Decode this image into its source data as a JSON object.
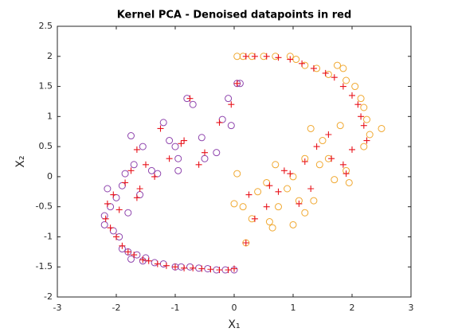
{
  "chart_data": {
    "type": "scatter",
    "title": "Kernel PCA - Denoised datapoints in red",
    "xlabel": "X₁",
    "ylabel": "X₂",
    "xlim": [
      -3,
      3
    ],
    "xticks": [
      -3,
      -2,
      -1,
      0,
      1,
      2,
      3
    ],
    "ylim": [
      -2,
      2.5
    ],
    "yticks": [
      -2,
      -1.5,
      -1,
      -0.5,
      0,
      0.5,
      1,
      1.5,
      2,
      2.5
    ],
    "grid": false,
    "series": [
      {
        "color": "#8e44ad",
        "marker": "o",
        "x": [
          -2.2,
          -2.2,
          -2.15,
          -2.1,
          -2.05,
          -2.0,
          -1.95,
          -1.9,
          -1.9,
          -1.85,
          -1.8,
          -1.8,
          -1.75,
          -1.7,
          -1.65,
          -1.6,
          -1.55,
          -1.5,
          -1.4,
          -1.35,
          -1.2,
          -1.2,
          -1.1,
          -1.0,
          -0.95,
          -0.9,
          -0.8,
          -0.75,
          -0.7,
          -0.6,
          -0.55,
          -0.5,
          -0.45,
          -0.3,
          -0.2,
          -0.15,
          -0.1,
          -0.05,
          0.0,
          0.05,
          0.1,
          -1.75,
          -1.55,
          -1.0,
          -0.3,
          -1.3,
          -0.95
        ],
        "y": [
          -0.65,
          -0.8,
          -0.2,
          -0.5,
          -0.9,
          -0.35,
          -1.0,
          -0.15,
          -1.2,
          0.05,
          -0.6,
          -1.25,
          -1.37,
          0.2,
          -1.3,
          -0.3,
          -1.4,
          -1.35,
          0.1,
          -1.43,
          0.9,
          -1.45,
          0.6,
          -1.5,
          0.3,
          -1.5,
          1.3,
          -1.5,
          1.2,
          -1.52,
          0.65,
          0.3,
          -1.53,
          -1.55,
          0.95,
          -1.55,
          1.3,
          0.85,
          -1.55,
          1.55,
          1.55,
          0.68,
          0.5,
          0.5,
          0.4,
          0.05,
          0.1
        ]
      },
      {
        "color": "#f0a830",
        "marker": "o",
        "x": [
          0.05,
          0.15,
          0.3,
          0.5,
          0.7,
          0.95,
          1.05,
          1.2,
          1.4,
          1.6,
          1.75,
          1.85,
          1.9,
          2.05,
          2.15,
          2.2,
          2.25,
          2.3,
          2.5,
          2.2,
          1.9,
          1.95,
          1.3,
          1.5,
          1.2,
          1.0,
          0.9,
          0.75,
          0.6,
          1.0,
          0.65,
          0.3,
          0.15,
          0.05,
          0.0,
          0.2,
          0.4,
          0.7,
          1.1,
          1.2,
          1.35,
          1.6,
          1.7,
          1.8,
          1.45,
          0.55
        ],
        "y": [
          2.0,
          2.0,
          2.0,
          2.0,
          2.0,
          2.0,
          1.95,
          1.85,
          1.8,
          1.7,
          1.85,
          1.8,
          1.6,
          1.5,
          1.3,
          1.15,
          0.95,
          0.7,
          0.8,
          0.5,
          0.1,
          -0.1,
          0.8,
          0.6,
          0.3,
          0.0,
          -0.2,
          -0.5,
          -0.75,
          -0.8,
          -0.85,
          -0.7,
          -0.5,
          0.05,
          -0.45,
          -1.1,
          -0.25,
          0.2,
          -0.4,
          -0.6,
          -0.4,
          0.3,
          -0.05,
          0.85,
          0.2,
          -0.1
        ]
      },
      {
        "color": "#e8141c",
        "marker": "+",
        "x": [
          -2.18,
          -2.15,
          -2.1,
          -2.05,
          -2.0,
          -1.95,
          -1.9,
          -1.85,
          -1.8,
          -1.75,
          -1.7,
          -1.65,
          -1.55,
          -1.45,
          -1.3,
          -1.15,
          -1.0,
          -0.85,
          -0.7,
          -0.55,
          -0.4,
          -0.25,
          -0.1,
          0.0,
          -1.65,
          -1.5,
          -1.35,
          -1.1,
          -0.9,
          -0.75,
          -0.5,
          -0.25,
          -0.05,
          0.05,
          -1.6,
          -1.25,
          -0.85,
          -0.6,
          0.2,
          0.35,
          0.55,
          0.75,
          0.95,
          1.15,
          1.35,
          1.55,
          1.7,
          1.85,
          2.0,
          2.1,
          2.15,
          2.2,
          2.25,
          2.0,
          1.85,
          1.6,
          1.4,
          1.2,
          0.95,
          0.75,
          0.55,
          0.35,
          0.25,
          0.6,
          0.85,
          1.1,
          1.3,
          1.65,
          1.9,
          0.2
        ],
        "y": [
          -0.7,
          -0.45,
          -0.85,
          -0.3,
          -1.0,
          -0.55,
          -1.15,
          -0.1,
          -1.25,
          0.1,
          -1.3,
          -0.35,
          -1.38,
          -1.4,
          -1.45,
          -1.48,
          -1.5,
          -1.52,
          -1.52,
          -1.53,
          -1.54,
          -1.55,
          -1.55,
          -1.53,
          0.45,
          0.2,
          0.0,
          0.3,
          0.55,
          1.3,
          0.4,
          0.9,
          1.2,
          1.55,
          -0.2,
          0.8,
          0.6,
          0.2,
          2.0,
          2.0,
          2.0,
          1.98,
          1.95,
          1.88,
          1.8,
          1.72,
          1.65,
          1.5,
          1.35,
          1.2,
          1.0,
          0.85,
          0.6,
          0.45,
          0.2,
          0.7,
          0.5,
          0.25,
          0.05,
          -0.25,
          -0.5,
          -0.7,
          -0.3,
          -0.15,
          0.1,
          -0.45,
          -0.2,
          0.3,
          0.05,
          -1.1
        ]
      }
    ]
  }
}
